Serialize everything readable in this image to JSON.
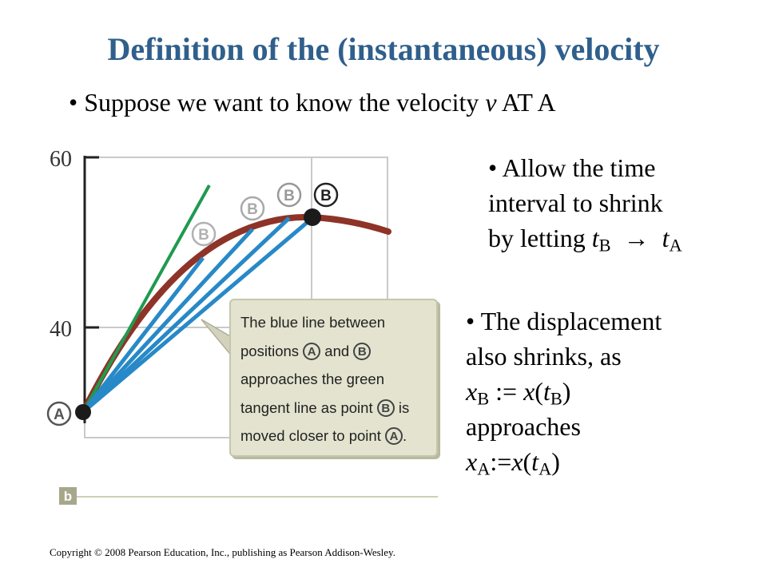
{
  "title": "Definition of the (instantaneous) velocity",
  "bullet_main": {
    "pre": "Suppose we want to know the velocity ",
    "var": "v",
    "post": " AT A"
  },
  "right_bullet_1": {
    "line1": "Allow the time",
    "line2": "interval to shrink",
    "line3_pre": "by letting ",
    "t": "t",
    "sub_b": "B",
    "arrow": "→",
    "sub_a": "A"
  },
  "right_bullet_2": {
    "line1": "The displacement",
    "line2": "also shrinks, as",
    "x": "x",
    "t": "t",
    "sub_b": "B",
    "sub_a": "A",
    "def_b_mid": " := ",
    "def_a_mid": ":=",
    "approaches": "approaches"
  },
  "figure": {
    "y_ticks": [
      "60",
      "40"
    ],
    "panel_label": "b",
    "point_a_label": "A",
    "point_b_label": "B",
    "callout": {
      "line1": "The blue line between",
      "line2_pre": "positions",
      "line2_mid": "and",
      "line3": "approaches the green",
      "line4_pre": "tangent line as point",
      "line4_post": "is",
      "line5": "moved closer to point",
      "period": "."
    },
    "colors": {
      "curve": "#8e3328",
      "secant": "#2789c7",
      "tangent": "#1f9a4f",
      "grid": "#c9c9c9",
      "axis": "#222222"
    }
  },
  "copyright": "Copyright © 2008 Pearson Education, Inc., publishing as Pearson Addison-Wesley."
}
